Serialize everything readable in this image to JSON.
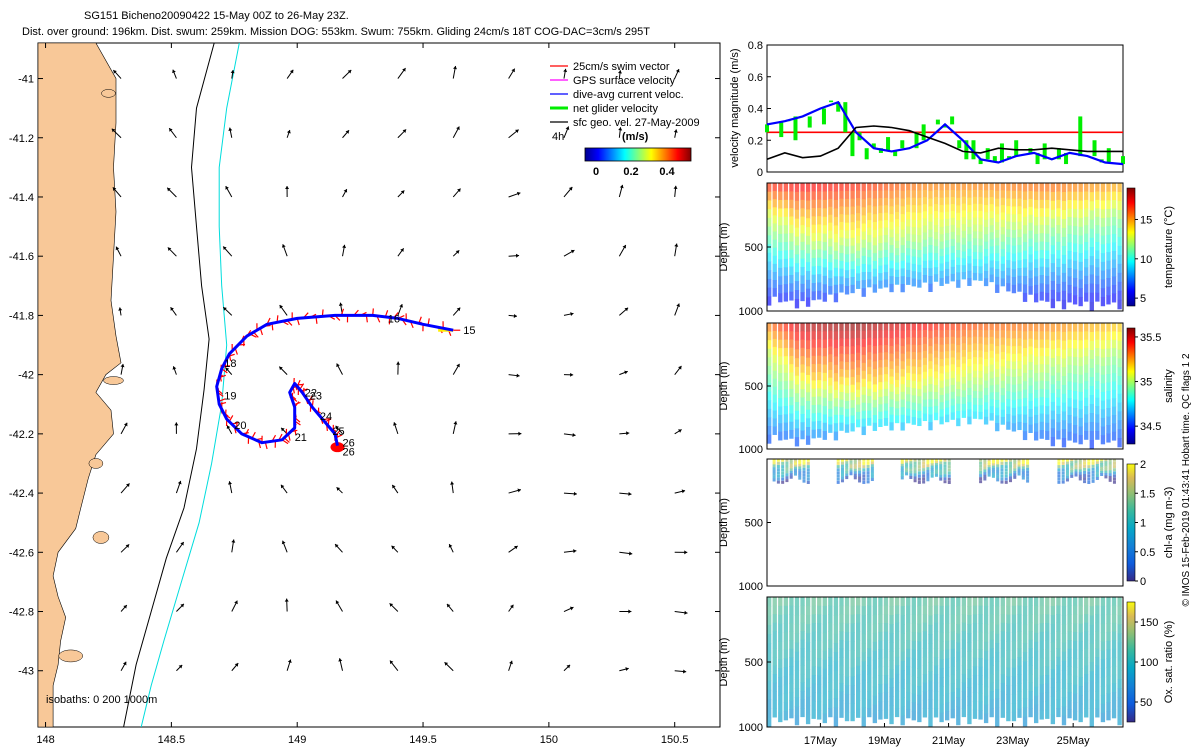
{
  "header": {
    "line1": "SG151 Bicheno20090422 15-May 00Z to 26-May 23Z.",
    "line2": "Dist. over ground: 196km. Dist. swum: 259km. Mission DOG: 553km. Swum: 755km. Gliding 24cm/s 18T COG-DAC=3cm/s 295T"
  },
  "side_credit": "© IMOS 15-Feb-2019 01:43:41 Hobart time. QC flags 1  2",
  "colors": {
    "land": "#f8c898",
    "swim": "#ff0000",
    "gps": "#ff00ff",
    "dac": "#0000ff",
    "net": "#00ee00",
    "isobath200": "#000000",
    "isobath1000": "#00dddd"
  },
  "chart_data": [
    {
      "type": "map",
      "name": "glider track map",
      "xticks": [
        "148",
        "148.5",
        "149",
        "149.5",
        "150",
        "150.5"
      ],
      "xtick_values": [
        148,
        148.5,
        149,
        149.5,
        150,
        150.5
      ],
      "yticks": [
        "-41",
        "-41.2",
        "-41.4",
        "-41.6",
        "-41.8",
        "-42",
        "-42.2",
        "-42.4",
        "-42.6",
        "-42.8",
        "-43"
      ],
      "ytick_values": [
        -41,
        -41.2,
        -41.4,
        -41.6,
        -41.8,
        -42,
        -42.2,
        -42.4,
        -42.6,
        -42.8,
        -43
      ],
      "xlim": [
        147.97,
        150.68
      ],
      "ylim": [
        -43.19,
        -40.88
      ],
      "legend": [
        {
          "label": "25cm/s swim vector",
          "color": "#ff0000"
        },
        {
          "label": "GPS surface velocity",
          "color": "#ff00ff"
        },
        {
          "label": "dive-avg current veloc.",
          "color": "#0000ff"
        },
        {
          "label": "net glider velocity",
          "color": "#00ee00"
        },
        {
          "label": "sfc geo. vel. 27-May-2009",
          "color": "#000000"
        }
      ],
      "colorbar": {
        "title": "(m/s)",
        "ticks": [
          "0",
          "0.2",
          "0.4"
        ],
        "range": [
          -0.05,
          0.55
        ],
        "extra_label": "4h"
      },
      "isobath_label": "isobaths: 0   200   1000m",
      "track": [
        [
          149.62,
          -41.85
        ],
        [
          149.5,
          -41.83
        ],
        [
          149.4,
          -41.81
        ],
        [
          149.3,
          -41.8
        ],
        [
          149.15,
          -41.8
        ],
        [
          149.0,
          -41.81
        ],
        [
          148.88,
          -41.83
        ],
        [
          148.8,
          -41.87
        ],
        [
          148.73,
          -41.93
        ],
        [
          148.7,
          -41.98
        ],
        [
          148.68,
          -42.04
        ],
        [
          148.69,
          -42.1
        ],
        [
          148.72,
          -42.15
        ],
        [
          148.78,
          -42.2
        ],
        [
          148.86,
          -42.23
        ],
        [
          148.94,
          -42.22
        ],
        [
          148.99,
          -42.18
        ],
        [
          148.99,
          -42.11
        ],
        [
          148.97,
          -42.06
        ],
        [
          148.99,
          -42.03
        ],
        [
          149.02,
          -42.06
        ],
        [
          149.06,
          -42.11
        ],
        [
          149.11,
          -42.16
        ],
        [
          149.15,
          -42.2
        ],
        [
          149.16,
          -42.24
        ]
      ],
      "track_labels": [
        {
          "t": "15",
          "lon": 149.66,
          "lat": -41.85
        },
        {
          "t": "16",
          "lon": 149.36,
          "lat": -41.81
        },
        {
          "t": "18",
          "lon": 148.71,
          "lat": -41.96
        },
        {
          "t": "19",
          "lon": 148.71,
          "lat": -42.07
        },
        {
          "t": "20",
          "lon": 148.75,
          "lat": -42.17
        },
        {
          "t": "21",
          "lon": 148.99,
          "lat": -42.21
        },
        {
          "t": "22",
          "lon": 149.03,
          "lat": -42.06
        },
        {
          "t": "23",
          "lon": 149.05,
          "lat": -42.07
        },
        {
          "t": "24",
          "lon": 149.09,
          "lat": -42.14
        },
        {
          "t": "25",
          "lon": 149.14,
          "lat": -42.19
        },
        {
          "t": "26",
          "lon": 149.18,
          "lat": -42.23
        },
        {
          "t": "26",
          "lon": 149.18,
          "lat": -42.26
        }
      ],
      "coast": [
        [
          147.97,
          -40.88
        ],
        [
          148.2,
          -40.88
        ],
        [
          148.28,
          -41.0
        ],
        [
          148.28,
          -41.15
        ],
        [
          148.27,
          -41.3
        ],
        [
          148.28,
          -41.45
        ],
        [
          148.27,
          -41.6
        ],
        [
          148.26,
          -41.75
        ],
        [
          148.28,
          -41.87
        ],
        [
          148.3,
          -41.96
        ],
        [
          148.24,
          -42.0
        ],
        [
          148.2,
          -42.06
        ],
        [
          148.26,
          -42.12
        ],
        [
          148.27,
          -42.2
        ],
        [
          148.2,
          -42.27
        ],
        [
          148.17,
          -42.35
        ],
        [
          148.14,
          -42.45
        ],
        [
          148.12,
          -42.52
        ],
        [
          148.05,
          -42.6
        ],
        [
          148.03,
          -42.68
        ],
        [
          148.05,
          -42.75
        ],
        [
          148.08,
          -42.82
        ],
        [
          148.06,
          -42.9
        ],
        [
          148.05,
          -42.98
        ],
        [
          148.03,
          -43.05
        ],
        [
          148.03,
          -43.19
        ],
        [
          147.97,
          -43.19
        ]
      ],
      "isobath200": [
        [
          148.67,
          -40.88
        ],
        [
          148.6,
          -41.1
        ],
        [
          148.58,
          -41.3
        ],
        [
          148.6,
          -41.5
        ],
        [
          148.62,
          -41.7
        ],
        [
          148.65,
          -41.88
        ],
        [
          148.63,
          -42.05
        ],
        [
          148.6,
          -42.25
        ],
        [
          148.55,
          -42.45
        ],
        [
          148.48,
          -42.62
        ],
        [
          148.42,
          -42.8
        ],
        [
          148.36,
          -42.98
        ],
        [
          148.31,
          -43.19
        ]
      ],
      "isobath1000": [
        [
          148.77,
          -40.88
        ],
        [
          148.72,
          -41.1
        ],
        [
          148.69,
          -41.3
        ],
        [
          148.69,
          -41.5
        ],
        [
          148.7,
          -41.7
        ],
        [
          148.72,
          -41.9
        ],
        [
          148.7,
          -42.1
        ],
        [
          148.66,
          -42.3
        ],
        [
          148.61,
          -42.5
        ],
        [
          148.54,
          -42.7
        ],
        [
          148.47,
          -42.9
        ],
        [
          148.42,
          -43.05
        ],
        [
          148.38,
          -43.19
        ]
      ]
    },
    {
      "type": "line",
      "name": "velocity magnitude",
      "ylabel": "velocity magnitude (m/s)",
      "ylim": [
        0,
        0.8
      ],
      "yticks": [
        "0",
        "0.2",
        "0.4",
        "0.6",
        "0.8"
      ],
      "ytick_values": [
        0,
        0.2,
        0.4,
        0.6,
        0.8
      ],
      "series": [
        {
          "name": "25cm/s swim vector",
          "color": "#ff0000",
          "x": [
            0,
            1
          ],
          "values": [
            0.25,
            0.25
          ]
        },
        {
          "name": "net glider velocity",
          "color": "#00ee00",
          "x": [
            0.0,
            0.02,
            0.04,
            0.06,
            0.08,
            0.1,
            0.12,
            0.14,
            0.16,
            0.18,
            0.2,
            0.22,
            0.24,
            0.26,
            0.28,
            0.3,
            0.32,
            0.34,
            0.36,
            0.38,
            0.4,
            0.42,
            0.44,
            0.46,
            0.48,
            0.5,
            0.52,
            0.54,
            0.56,
            0.58,
            0.6,
            0.62,
            0.64,
            0.66,
            0.68,
            0.7,
            0.72,
            0.74,
            0.76,
            0.78,
            0.8,
            0.82,
            0.84,
            0.86,
            0.88,
            0.9,
            0.92,
            0.94,
            0.96,
            0.98,
            1.0
          ],
          "values": [
            0.25,
            0.3,
            0.22,
            0.33,
            0.2,
            0.35,
            0.28,
            0.4,
            0.3,
            0.45,
            0.38,
            0.25,
            0.1,
            0.2,
            0.08,
            0.18,
            0.12,
            0.22,
            0.1,
            0.2,
            0.15,
            0.25,
            0.3,
            0.2,
            0.33,
            0.28,
            0.35,
            0.15,
            0.08,
            0.2,
            0.05,
            0.15,
            0.1,
            0.18,
            0.08,
            0.2,
            0.1,
            0.15,
            0.05,
            0.18,
            0.08,
            0.15,
            0.05,
            0.12,
            0.35,
            0.1,
            0.2,
            0.08,
            0.15,
            0.05,
            0.1
          ]
        },
        {
          "name": "dive-avg current veloc.",
          "color": "#0000ff",
          "x": [
            0.0,
            0.05,
            0.1,
            0.15,
            0.2,
            0.25,
            0.3,
            0.35,
            0.4,
            0.45,
            0.5,
            0.55,
            0.6,
            0.65,
            0.7,
            0.75,
            0.8,
            0.85,
            0.9,
            0.95,
            1.0
          ],
          "values": [
            0.3,
            0.32,
            0.35,
            0.4,
            0.44,
            0.25,
            0.15,
            0.13,
            0.15,
            0.2,
            0.3,
            0.2,
            0.08,
            0.06,
            0.1,
            0.12,
            0.08,
            0.12,
            0.1,
            0.06,
            0.05
          ]
        },
        {
          "name": "sfc geo. vel.",
          "color": "#000000",
          "x": [
            0.0,
            0.05,
            0.1,
            0.15,
            0.2,
            0.25,
            0.3,
            0.35,
            0.4,
            0.45,
            0.5,
            0.55,
            0.6,
            0.65,
            0.7,
            0.75,
            0.8,
            0.85,
            0.9,
            0.95,
            1.0
          ],
          "values": [
            0.08,
            0.12,
            0.09,
            0.1,
            0.15,
            0.28,
            0.29,
            0.28,
            0.26,
            0.22,
            0.18,
            0.13,
            0.12,
            0.15,
            0.14,
            0.14,
            0.15,
            0.14,
            0.13,
            0.13,
            0.13
          ]
        }
      ]
    },
    {
      "type": "heatmap",
      "name": "temperature section",
      "ylabel": "Depth (m)",
      "yticks": [
        "500",
        "1000"
      ],
      "ytick_values": [
        500,
        1000
      ],
      "ylim": [
        0,
        1000
      ],
      "colorbar": {
        "label": "temperature (°C)",
        "ticks": [
          "5",
          "10",
          "15"
        ],
        "tick_values": [
          5,
          10,
          15
        ],
        "range": [
          4,
          19
        ]
      },
      "time_breaks": [
        0.0,
        0.1,
        0.25,
        0.45,
        0.6,
        0.8,
        1.0
      ],
      "surface_values": [
        17,
        17.5,
        17,
        15.5,
        15.5,
        16,
        15
      ],
      "thermocline_depth_m": [
        220,
        380,
        440,
        430,
        400,
        330,
        280
      ],
      "deep_value": 5,
      "max_depth_m": [
        950,
        1000,
        900,
        850,
        820,
        1000,
        1000
      ]
    },
    {
      "type": "heatmap",
      "name": "salinity section",
      "ylabel": "Depth (m)",
      "yticks": [
        "500",
        "1000"
      ],
      "ytick_values": [
        500,
        1000
      ],
      "ylim": [
        0,
        1000
      ],
      "colorbar": {
        "label": "salinity",
        "ticks": [
          "34.5",
          "35",
          "35.5"
        ],
        "tick_values": [
          34.5,
          35,
          35.5
        ],
        "range": [
          34.3,
          35.6
        ]
      },
      "time_breaks": [
        0.0,
        0.1,
        0.25,
        0.45,
        0.6,
        0.8,
        1.0
      ],
      "surface_values": [
        35.3,
        35.55,
        35.6,
        35.45,
        35.35,
        35.3,
        35.2
      ],
      "thermocline_depth_m": [
        220,
        400,
        440,
        430,
        400,
        330,
        280
      ],
      "deep_value": 34.5,
      "max_depth_m": [
        950,
        1000,
        900,
        850,
        820,
        1000,
        1000
      ]
    },
    {
      "type": "scatter",
      "name": "chlorophyll-a section",
      "ylabel": "Depth (m)",
      "yticks": [
        "500",
        "1000"
      ],
      "ytick_values": [
        500,
        1000
      ],
      "ylim": [
        0,
        1000
      ],
      "colorbar": {
        "label": "chl-a (mg m-3)",
        "ticks": [
          "0",
          "0.5",
          "1",
          "1.5",
          "2"
        ],
        "tick_values": [
          0,
          0.5,
          1,
          1.5,
          2
        ],
        "range": [
          0,
          2
        ]
      },
      "profile_groups": [
        [
          0.02,
          0.12
        ],
        [
          0.2,
          0.3
        ],
        [
          0.38,
          0.52
        ],
        [
          0.6,
          0.74
        ],
        [
          0.82,
          0.98
        ]
      ],
      "profile_depth_m": 200
    },
    {
      "type": "heatmap",
      "name": "oxygen saturation section",
      "ylabel": "Depth (m)",
      "yticks": [
        "500",
        "1000"
      ],
      "ytick_values": [
        500,
        1000
      ],
      "ylim": [
        0,
        1000
      ],
      "xticks": [
        "17May",
        "19May",
        "21May",
        "23May",
        "25May"
      ],
      "xtick_values": [
        0.15,
        0.33,
        0.51,
        0.69,
        0.86
      ],
      "colorbar": {
        "label": "Ox. sat. ratio (%)",
        "ticks": [
          "50",
          "100",
          "150"
        ],
        "tick_values": [
          50,
          100,
          150
        ],
        "range": [
          25,
          175
        ]
      },
      "surface_value": 120,
      "deep_value": 80,
      "max_depth_m": 1000
    }
  ]
}
